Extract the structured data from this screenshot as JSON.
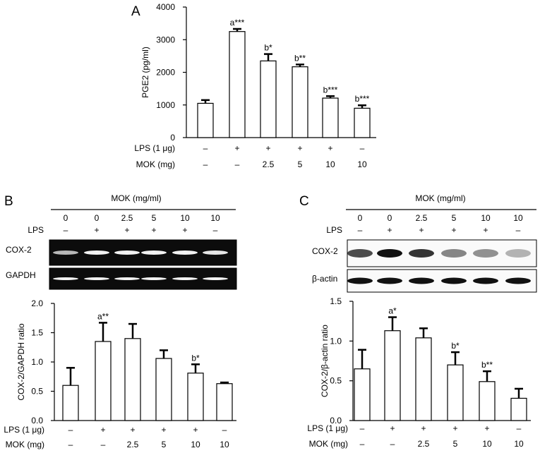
{
  "panels": {
    "A": {
      "letter": "A"
    },
    "B": {
      "letter": "B",
      "header": "MOK (mg/ml)",
      "dose_row": [
        "0",
        "0",
        "2.5",
        "5",
        "10",
        "10"
      ],
      "lps_label": "LPS",
      "lps_row": [
        "–",
        "+",
        "+",
        "+",
        "+",
        "–"
      ],
      "blots": [
        "COX-2",
        "GAPDH"
      ]
    },
    "C": {
      "letter": "C",
      "header": "MOK (mg/ml)",
      "dose_row": [
        "0",
        "0",
        "2.5",
        "5",
        "10",
        "10"
      ],
      "lps_label": "LPS",
      "lps_row": [
        "–",
        "+",
        "+",
        "+",
        "+",
        "–"
      ],
      "blots": [
        "COX-2",
        "β-actin"
      ]
    }
  },
  "chart_data": [
    {
      "panel": "A",
      "type": "bar",
      "ylabel": "PGE2 (pg/ml)",
      "ylim": [
        0,
        4000
      ],
      "yticks": [
        0,
        1000,
        2000,
        3000,
        4000
      ],
      "values": [
        1050,
        3250,
        2350,
        2170,
        1210,
        900
      ],
      "errors": [
        100,
        80,
        210,
        70,
        60,
        90
      ],
      "annotations": [
        "",
        "a***",
        "b*",
        "b**",
        "b***",
        "b***"
      ],
      "conditions": [
        {
          "label": "LPS (1 μg)",
          "values": [
            "–",
            "+",
            "+",
            "+",
            "+",
            "–"
          ]
        },
        {
          "label": "MOK (mg)",
          "values": [
            "–",
            "–",
            "2.5",
            "5",
            "10",
            "10"
          ]
        }
      ]
    },
    {
      "panel": "B",
      "type": "bar",
      "ylabel": "COX-2/GAPDH ratio",
      "ylim": [
        0,
        2.0
      ],
      "yticks": [
        "0.0",
        "0.5",
        "1.0",
        "1.5",
        "2.0"
      ],
      "values": [
        0.6,
        1.35,
        1.4,
        1.06,
        0.81,
        0.63
      ],
      "errors": [
        0.3,
        0.32,
        0.25,
        0.14,
        0.15,
        0.02
      ],
      "annotations": [
        "",
        "a**",
        "",
        "",
        "b*",
        ""
      ],
      "conditions": [
        {
          "label": "LPS (1 μg)",
          "values": [
            "–",
            "+",
            "+",
            "+",
            "+",
            "–"
          ]
        },
        {
          "label": "MOK (mg)",
          "values": [
            "–",
            "–",
            "2.5",
            "5",
            "10",
            "10"
          ]
        }
      ]
    },
    {
      "panel": "C",
      "type": "bar",
      "ylabel": "COX-2/β-actin ratio",
      "ylim": [
        0,
        1.5
      ],
      "yticks": [
        "0.0",
        "0.5",
        "1.0",
        "1.5"
      ],
      "values": [
        0.65,
        1.13,
        1.04,
        0.7,
        0.49,
        0.28
      ],
      "errors": [
        0.24,
        0.17,
        0.12,
        0.16,
        0.13,
        0.12
      ],
      "annotations": [
        "",
        "a*",
        "",
        "b*",
        "b**",
        ""
      ],
      "conditions": [
        {
          "label": "LPS (1 μg)",
          "values": [
            "–",
            "+",
            "+",
            "+",
            "+",
            "–"
          ]
        },
        {
          "label": "MOK (mg)",
          "values": [
            "–",
            "–",
            "2.5",
            "5",
            "10",
            "10"
          ]
        }
      ]
    }
  ]
}
